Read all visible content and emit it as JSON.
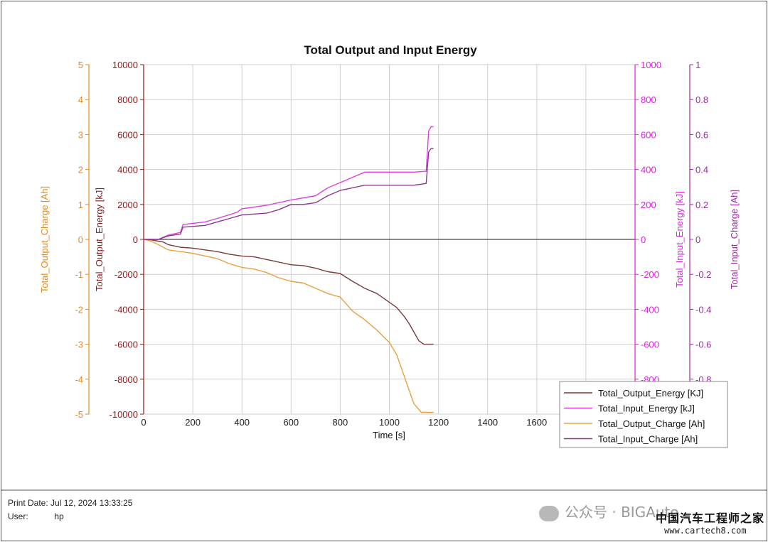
{
  "chart_data": {
    "type": "line",
    "title": "Total Output and Input Energy",
    "xlabel": "Time [s]",
    "xlim": [
      0,
      2000
    ],
    "x_ticks": [
      0,
      200,
      400,
      600,
      800,
      1000,
      1200,
      1400,
      1600,
      1800,
      2000
    ],
    "x_tick_labels": [
      "0",
      "200",
      "400",
      "600",
      "800",
      "1000",
      "1200",
      "1400",
      "1600",
      "",
      ""
    ],
    "axes": {
      "output_charge": {
        "label": "Total_Output_Charge [Ah]",
        "ylim": [
          -5,
          5
        ],
        "ticks": [
          "-5",
          "-4",
          "-3",
          "-2",
          "-1",
          "0",
          "1",
          "2",
          "3",
          "4",
          "5"
        ],
        "color": "#e08a1e"
      },
      "output_energy": {
        "label": "Total_Output_Energy [kJ]",
        "ylim": [
          -10000,
          10000
        ],
        "ticks": [
          "-10000",
          "-8000",
          "-6000",
          "-4000",
          "-2000",
          "0",
          "2000",
          "4000",
          "6000",
          "8000",
          "10000"
        ],
        "color": "#8b1a1a"
      },
      "input_energy": {
        "label": "Total_Input_Energy [kJ]",
        "ylim": [
          -1000,
          1000
        ],
        "ticks": [
          "",
          "-800",
          "-600",
          "-400",
          "-200",
          "0",
          "200",
          "400",
          "600",
          "800",
          "1000"
        ],
        "color": "#e020e0"
      },
      "input_charge": {
        "label": "Total_Input_Charge [Ah]",
        "ylim": [
          -1,
          1
        ],
        "ticks": [
          "",
          "-0.8",
          "-0.6",
          "-0.4",
          "-0.2",
          "0",
          "0.2",
          "0.4",
          "0.6",
          "0.8",
          "1"
        ],
        "color": "#9b2d9b"
      }
    },
    "series": [
      {
        "name": "Total_Output_Energy [KJ]",
        "axis": "output_energy",
        "color": "#7a3b3b",
        "x": [
          0,
          30,
          60,
          80,
          100,
          150,
          200,
          250,
          300,
          350,
          400,
          450,
          500,
          550,
          600,
          650,
          700,
          750,
          800,
          850,
          900,
          950,
          1000,
          1030,
          1060,
          1080,
          1100,
          1120,
          1140,
          1160,
          1180
        ],
        "y": [
          0,
          -30,
          -100,
          -150,
          -300,
          -450,
          -500,
          -600,
          -700,
          -850,
          -950,
          -1000,
          -1150,
          -1300,
          -1450,
          -1500,
          -1650,
          -1850,
          -1950,
          -2400,
          -2800,
          -3100,
          -3600,
          -3900,
          -4400,
          -4800,
          -5300,
          -5800,
          -6000,
          -6000,
          -6000
        ]
      },
      {
        "name": "Total_Input_Energy [kJ]",
        "axis": "input_energy",
        "color": "#e040e0",
        "x": [
          0,
          60,
          100,
          150,
          160,
          250,
          300,
          380,
          400,
          500,
          600,
          700,
          750,
          800,
          900,
          950,
          1000,
          1100,
          1150,
          1160,
          1170,
          1180
        ],
        "y": [
          0,
          0,
          25,
          40,
          85,
          100,
          120,
          155,
          175,
          195,
          225,
          250,
          295,
          325,
          385,
          385,
          385,
          385,
          390,
          620,
          645,
          645
        ]
      },
      {
        "name": "Total_Output_Charge [Ah]",
        "axis": "output_charge",
        "color": "#e8a040",
        "x": [
          0,
          30,
          60,
          100,
          150,
          200,
          300,
          350,
          400,
          450,
          500,
          550,
          600,
          650,
          700,
          750,
          800,
          850,
          900,
          950,
          1000,
          1030,
          1060,
          1080,
          1100,
          1130,
          1160,
          1180
        ],
        "y": [
          0,
          -0.05,
          -0.15,
          -0.3,
          -0.35,
          -0.4,
          -0.55,
          -0.7,
          -0.8,
          -0.85,
          -0.95,
          -1.1,
          -1.2,
          -1.25,
          -1.4,
          -1.55,
          -1.65,
          -2.05,
          -2.3,
          -2.6,
          -2.95,
          -3.3,
          -3.9,
          -4.3,
          -4.7,
          -4.95,
          -4.95,
          -4.95
        ]
      },
      {
        "name": "Total_Input_Charge [Ah]",
        "axis": "input_charge",
        "color": "#8a3a8a",
        "x": [
          0,
          60,
          100,
          150,
          160,
          250,
          300,
          350,
          400,
          500,
          550,
          600,
          650,
          700,
          750,
          800,
          900,
          1000,
          1100,
          1150,
          1160,
          1170,
          1180
        ],
        "y": [
          0,
          0,
          0.02,
          0.03,
          0.07,
          0.08,
          0.1,
          0.12,
          0.14,
          0.15,
          0.17,
          0.2,
          0.2,
          0.21,
          0.25,
          0.28,
          0.31,
          0.31,
          0.31,
          0.32,
          0.5,
          0.52,
          0.52
        ]
      }
    ],
    "legend_position": "bottom-right",
    "grid": true
  },
  "footer": {
    "print_date_label": "Print Date:",
    "print_date_value": "Jul 12, 2024 13:33:25",
    "user_label": "User:",
    "user_value": "hp"
  },
  "watermark": {
    "account_text": "公众号 · BIGAuto",
    "site_name": "中国汽车工程师之家",
    "site_url": "www.cartech8.com"
  }
}
